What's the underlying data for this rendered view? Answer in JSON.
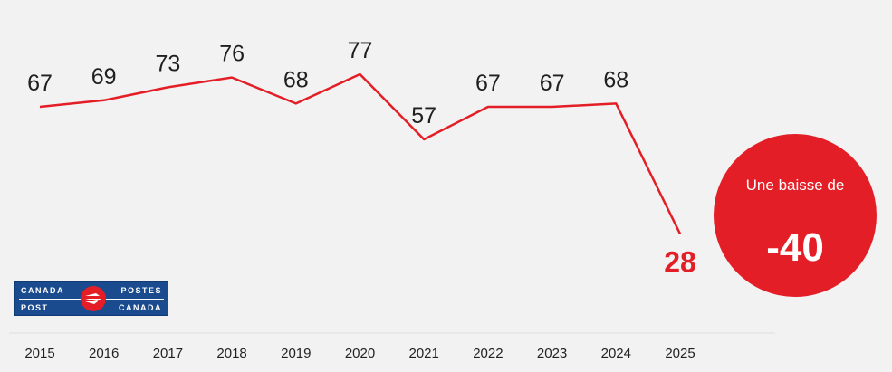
{
  "chart_data": {
    "type": "line",
    "title": "",
    "xlabel": "",
    "ylabel": "",
    "x": [
      "2015",
      "2016",
      "2017",
      "2018",
      "2019",
      "2020",
      "2021",
      "2022",
      "2023",
      "2024",
      "2025"
    ],
    "series": [
      {
        "values": [
          67,
          69,
          73,
          76,
          68,
          77,
          57,
          67,
          67,
          68,
          28
        ],
        "labels": [
          "67",
          "69",
          "73",
          "76",
          "68",
          "77",
          "57",
          "67",
          "67",
          "68",
          "28"
        ]
      }
    ],
    "highlight_index": 10,
    "grid": false,
    "line_color": "#e41e26"
  },
  "callout": {
    "text": "Une baisse de",
    "value": "-40"
  },
  "logo": {
    "top_left": "CANADA",
    "bottom_left": "POST",
    "top_right": "POSTES",
    "bottom_right": "CANADA"
  },
  "colors": {
    "accent": "#e41e26",
    "background": "#f2f2f2",
    "logo_blue": "#1a4b8e"
  }
}
